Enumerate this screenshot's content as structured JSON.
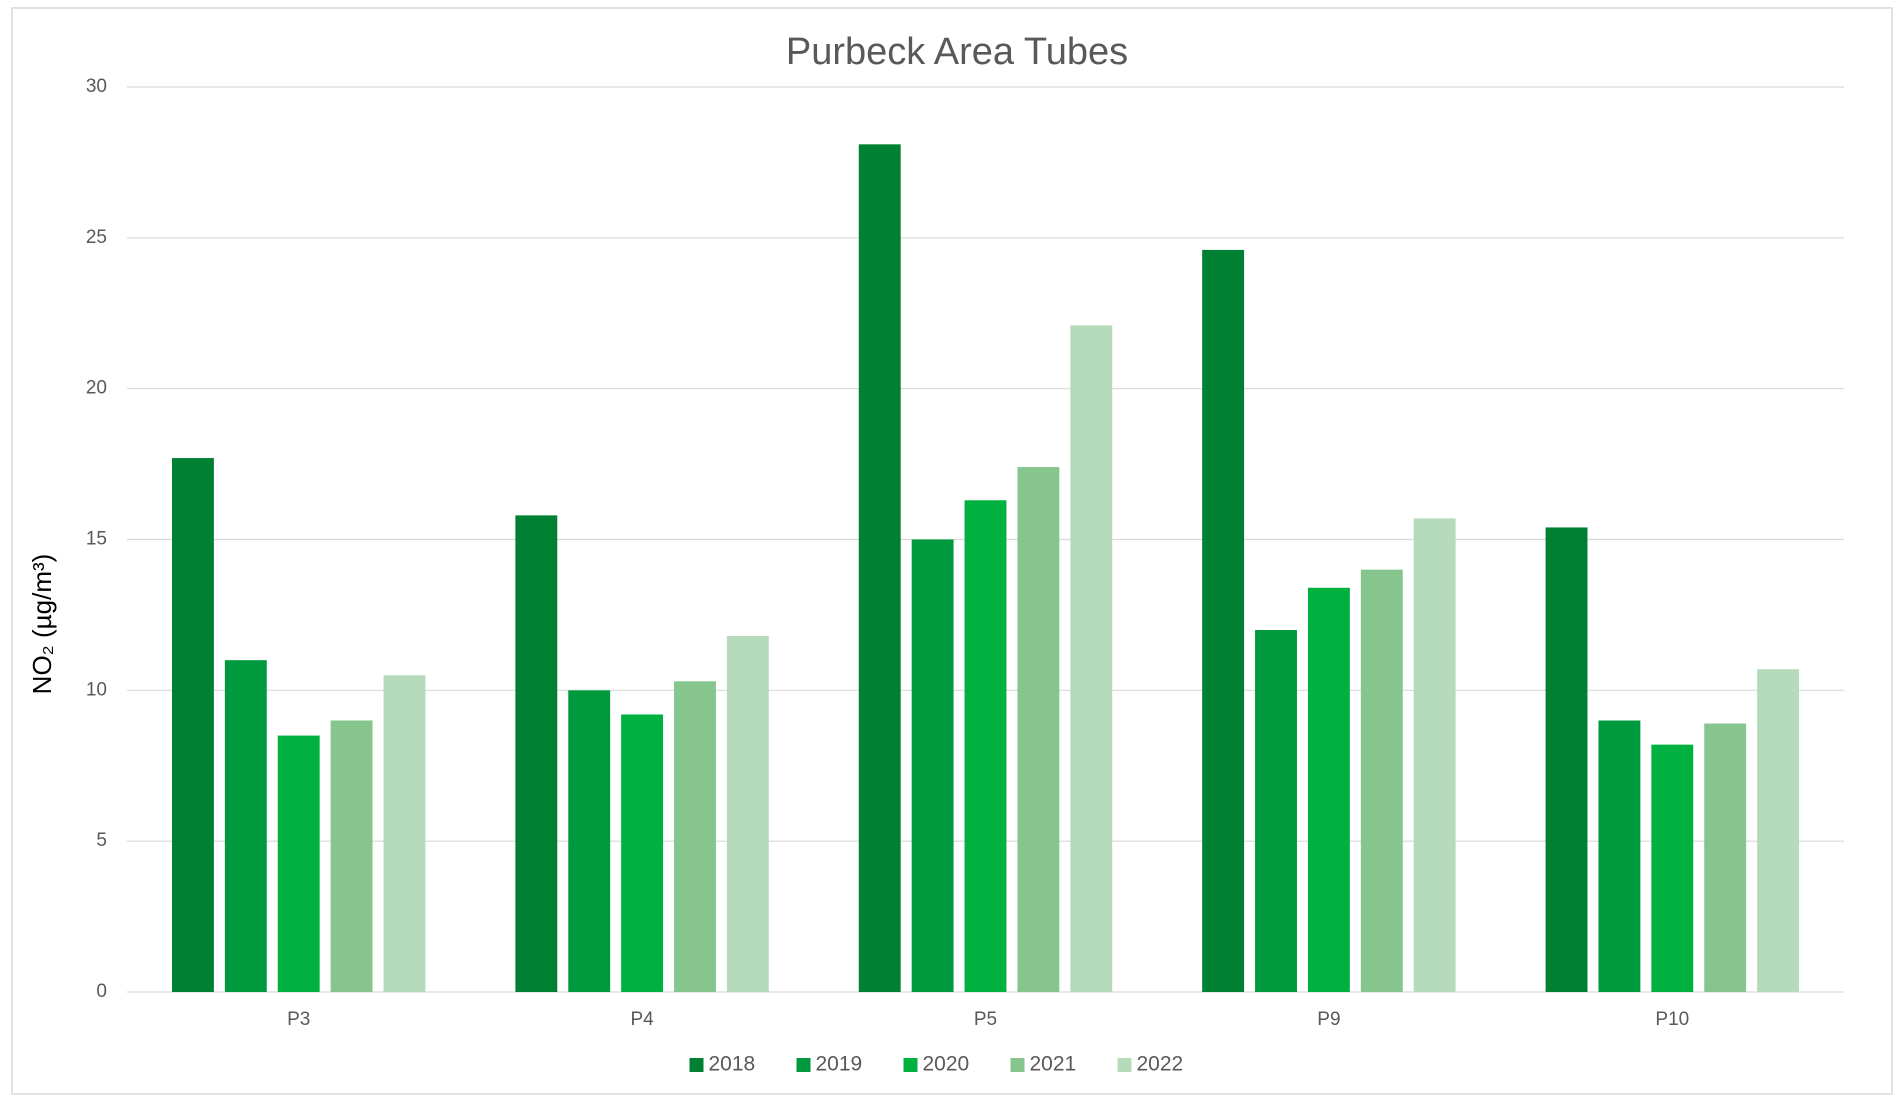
{
  "chart_data": {
    "type": "bar",
    "title": "Purbeck Area Tubes",
    "y_label": "NO₂ (µg/m³)",
    "categories": [
      "P3",
      "P4",
      "P5",
      "P9",
      "P10"
    ],
    "series": [
      {
        "name": "2018",
        "color": "#008033",
        "values": [
          17.7,
          15.8,
          28.1,
          24.6,
          15.4
        ]
      },
      {
        "name": "2019",
        "color": "#009a3e",
        "values": [
          11.0,
          10.0,
          15.0,
          12.0,
          9.0
        ]
      },
      {
        "name": "2020",
        "color": "#00b140",
        "values": [
          8.5,
          9.2,
          16.3,
          13.4,
          8.2
        ]
      },
      {
        "name": "2021",
        "color": "#86c58e",
        "values": [
          9.0,
          10.3,
          17.4,
          14.0,
          8.9
        ]
      },
      {
        "name": "2022",
        "color": "#b6dbbb",
        "values": [
          10.5,
          11.8,
          22.1,
          15.7,
          10.7
        ]
      }
    ],
    "ylim": [
      0,
      30
    ],
    "yticks": [
      0,
      5,
      10,
      15,
      20,
      25,
      30
    ],
    "grid": true,
    "legend": "bottom"
  }
}
